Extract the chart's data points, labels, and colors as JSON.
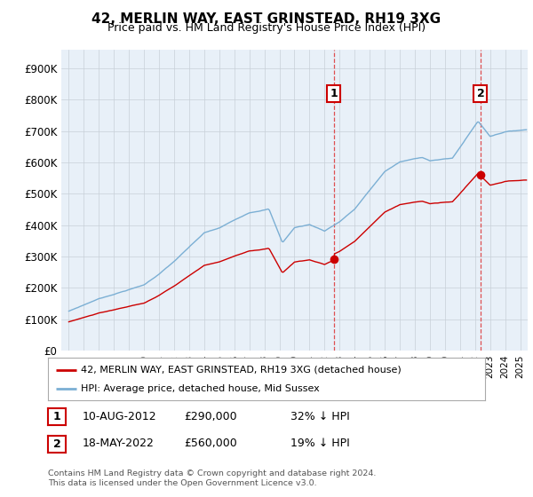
{
  "title": "42, MERLIN WAY, EAST GRINSTEAD, RH19 3XG",
  "subtitle": "Price paid vs. HM Land Registry's House Price Index (HPI)",
  "yticks": [
    0,
    100000,
    200000,
    300000,
    400000,
    500000,
    600000,
    700000,
    800000,
    900000
  ],
  "ylim": [
    0,
    960000
  ],
  "xlim_start": 1994.5,
  "xlim_end": 2025.5,
  "sale1_date": 2012.6,
  "sale1_price": 290000,
  "sale1_label": "1",
  "sale1_text": "10-AUG-2012",
  "sale1_price_text": "£290,000",
  "sale1_hpi_text": "32% ↓ HPI",
  "sale2_date": 2022.37,
  "sale2_price": 560000,
  "sale2_label": "2",
  "sale2_text": "18-MAY-2022",
  "sale2_price_text": "£560,000",
  "sale2_hpi_text": "19% ↓ HPI",
  "line_color_property": "#cc0000",
  "line_color_hpi": "#7bafd4",
  "bg_color": "#e8f0f8",
  "grid_color": "#c8d0d8",
  "legend_label_property": "42, MERLIN WAY, EAST GRINSTEAD, RH19 3XG (detached house)",
  "legend_label_hpi": "HPI: Average price, detached house, Mid Sussex",
  "footer_text": "Contains HM Land Registry data © Crown copyright and database right 2024.\nThis data is licensed under the Open Government Licence v3.0."
}
